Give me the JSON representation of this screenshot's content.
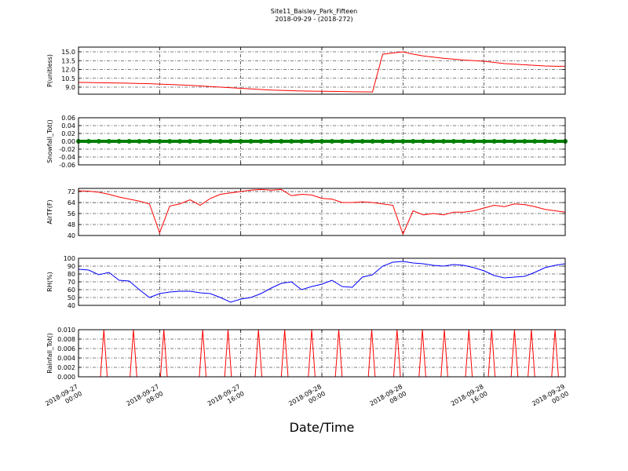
{
  "figure": {
    "title": "Site11_Baisley_Park_Fifteen",
    "subtitle": "2018-09-29 - (2018-272)",
    "x_label": "Date/Time"
  },
  "chart_data": [
    {
      "type": "line",
      "y_label": "P(unitless)",
      "color": "#ff0000",
      "x": [
        "2018-09-27 00:00",
        "2018-09-27 01:00",
        "2018-09-27 02:00",
        "2018-09-27 03:00",
        "2018-09-27 04:00",
        "2018-09-27 05:00",
        "2018-09-27 06:00",
        "2018-09-27 07:00",
        "2018-09-27 08:00",
        "2018-09-27 09:00",
        "2018-09-27 10:00",
        "2018-09-27 11:00",
        "2018-09-27 12:00",
        "2018-09-27 13:00",
        "2018-09-27 14:00",
        "2018-09-27 15:00",
        "2018-09-27 16:00",
        "2018-09-27 17:00",
        "2018-09-27 18:00",
        "2018-09-27 19:00",
        "2018-09-27 20:00",
        "2018-09-27 21:00",
        "2018-09-27 22:00",
        "2018-09-27 23:00",
        "2018-09-28 00:00",
        "2018-09-28 01:00",
        "2018-09-28 02:00",
        "2018-09-28 03:00",
        "2018-09-28 04:00",
        "2018-09-28 05:00",
        "2018-09-28 06:00",
        "2018-09-28 07:00",
        "2018-09-28 08:00",
        "2018-09-28 09:00",
        "2018-09-28 10:00",
        "2018-09-28 11:00",
        "2018-09-28 12:00",
        "2018-09-28 13:00",
        "2018-09-28 14:00",
        "2018-09-28 15:00",
        "2018-09-28 16:00",
        "2018-09-28 17:00",
        "2018-09-28 18:00",
        "2018-09-28 19:00",
        "2018-09-28 20:00",
        "2018-09-28 21:00",
        "2018-09-28 22:00",
        "2018-09-28 23:00",
        "2018-09-29 00:00"
      ],
      "values": [
        9.8,
        9.78,
        9.75,
        9.72,
        9.7,
        9.66,
        9.62,
        9.58,
        9.52,
        9.45,
        9.38,
        9.3,
        9.2,
        9.1,
        9.0,
        8.9,
        8.8,
        8.7,
        8.6,
        8.5,
        8.45,
        8.4,
        8.35,
        8.32,
        8.3,
        8.28,
        8.25,
        8.22,
        8.2,
        8.18,
        14.6,
        14.8,
        15.0,
        14.6,
        14.3,
        14.1,
        13.9,
        13.75,
        13.6,
        13.5,
        13.4,
        13.2,
        13.0,
        12.9,
        12.8,
        12.7,
        12.6,
        12.55,
        12.55
      ],
      "ylim": [
        7.8,
        15.8
      ],
      "yticks": [
        {
          "value": 9,
          "label": "9.0"
        },
        10.5,
        {
          "value": 12,
          "label": "12.0"
        },
        13.5,
        {
          "value": 15,
          "label": "15.0"
        }
      ],
      "xlim": [
        "2018-09-27 00:00",
        "2018-09-29 00:00"
      ],
      "xticks": [
        "2018-09-27 00:00",
        "2018-09-27 08:00",
        "2018-09-27 16:00",
        "2018-09-28 00:00",
        "2018-09-28 08:00",
        "2018-09-28 16:00",
        "2018-09-29 00:00"
      ],
      "grid": true
    },
    {
      "type": "line",
      "y_label": "Snowfall_Tot()",
      "color": "#008000",
      "markers": true,
      "x": [
        "2018-09-27 00:00",
        "2018-09-27 01:00",
        "2018-09-27 02:00",
        "2018-09-27 03:00",
        "2018-09-27 04:00",
        "2018-09-27 05:00",
        "2018-09-27 06:00",
        "2018-09-27 07:00",
        "2018-09-27 08:00",
        "2018-09-27 09:00",
        "2018-09-27 10:00",
        "2018-09-27 11:00",
        "2018-09-27 12:00",
        "2018-09-27 13:00",
        "2018-09-27 14:00",
        "2018-09-27 15:00",
        "2018-09-27 16:00",
        "2018-09-27 17:00",
        "2018-09-27 18:00",
        "2018-09-27 19:00",
        "2018-09-27 20:00",
        "2018-09-27 21:00",
        "2018-09-27 22:00",
        "2018-09-27 23:00",
        "2018-09-28 00:00",
        "2018-09-28 01:00",
        "2018-09-28 02:00",
        "2018-09-28 03:00",
        "2018-09-28 04:00",
        "2018-09-28 05:00",
        "2018-09-28 06:00",
        "2018-09-28 07:00",
        "2018-09-28 08:00",
        "2018-09-28 09:00",
        "2018-09-28 10:00",
        "2018-09-28 11:00",
        "2018-09-28 12:00",
        "2018-09-28 13:00",
        "2018-09-28 14:00",
        "2018-09-28 15:00",
        "2018-09-28 16:00",
        "2018-09-28 17:00",
        "2018-09-28 18:00",
        "2018-09-28 19:00",
        "2018-09-28 20:00",
        "2018-09-28 21:00",
        "2018-09-28 22:00",
        "2018-09-28 23:00",
        "2018-09-29 00:00"
      ],
      "values": [
        0,
        0,
        0,
        0,
        0,
        0,
        0,
        0,
        0,
        0,
        0,
        0,
        0,
        0,
        0,
        0,
        0,
        0,
        0,
        0,
        0,
        0,
        0,
        0,
        0,
        0,
        0,
        0,
        0,
        0,
        0,
        0,
        0,
        0,
        0,
        0,
        0,
        0,
        0,
        0,
        0,
        0,
        0,
        0,
        0,
        0,
        0,
        0,
        0
      ],
      "ylim": [
        -0.06,
        0.06
      ],
      "yticks": [
        -0.06,
        -0.04,
        -0.02,
        {
          "value": 0,
          "label": "0.00"
        },
        0.02,
        0.04,
        0.06
      ],
      "xlim": [
        "2018-09-27 00:00",
        "2018-09-29 00:00"
      ],
      "xticks": [
        "2018-09-27 00:00",
        "2018-09-27 08:00",
        "2018-09-27 16:00",
        "2018-09-28 00:00",
        "2018-09-28 08:00",
        "2018-09-28 16:00",
        "2018-09-29 00:00"
      ],
      "grid": true
    },
    {
      "type": "line",
      "y_label": "AirTF(F)",
      "color": "#ff0000",
      "x": [
        "2018-09-27 00:00",
        "2018-09-27 01:00",
        "2018-09-27 02:00",
        "2018-09-27 03:00",
        "2018-09-27 04:00",
        "2018-09-27 05:00",
        "2018-09-27 06:00",
        "2018-09-27 07:00",
        "2018-09-27 08:00",
        "2018-09-27 09:00",
        "2018-09-27 10:00",
        "2018-09-27 11:00",
        "2018-09-27 12:00",
        "2018-09-27 13:00",
        "2018-09-27 14:00",
        "2018-09-27 15:00",
        "2018-09-27 16:00",
        "2018-09-27 17:00",
        "2018-09-27 18:00",
        "2018-09-27 19:00",
        "2018-09-27 20:00",
        "2018-09-27 21:00",
        "2018-09-27 22:00",
        "2018-09-27 23:00",
        "2018-09-28 00:00",
        "2018-09-28 01:00",
        "2018-09-28 02:00",
        "2018-09-28 03:00",
        "2018-09-28 04:00",
        "2018-09-28 05:00",
        "2018-09-28 06:00",
        "2018-09-28 07:00",
        "2018-09-28 08:00",
        "2018-09-28 09:00",
        "2018-09-28 10:00",
        "2018-09-28 11:00",
        "2018-09-28 12:00",
        "2018-09-28 13:00",
        "2018-09-28 14:00",
        "2018-09-28 15:00",
        "2018-09-28 16:00",
        "2018-09-28 17:00",
        "2018-09-28 18:00",
        "2018-09-28 19:00",
        "2018-09-28 20:00",
        "2018-09-28 21:00",
        "2018-09-28 22:00",
        "2018-09-28 23:00",
        "2018-09-29 00:00"
      ],
      "values": [
        72.5,
        72.3,
        71.5,
        70,
        68,
        66.5,
        65,
        63,
        42,
        61.5,
        63,
        66,
        62,
        67,
        70,
        71,
        72,
        73,
        73.5,
        73,
        73.5,
        69,
        70,
        69.5,
        67,
        66.5,
        64,
        64,
        64.5,
        64,
        63,
        62,
        41,
        58,
        55,
        56,
        55,
        57,
        57,
        58,
        60,
        62,
        61,
        63,
        62.5,
        61,
        59,
        58,
        57
      ],
      "ylim": [
        40,
        74.3
      ],
      "yticks": [
        40,
        48,
        56,
        64,
        72
      ],
      "xlim": [
        "2018-09-27 00:00",
        "2018-09-29 00:00"
      ],
      "xticks": [
        "2018-09-27 00:00",
        "2018-09-27 08:00",
        "2018-09-27 16:00",
        "2018-09-28 00:00",
        "2018-09-28 08:00",
        "2018-09-28 16:00",
        "2018-09-29 00:00"
      ],
      "grid": true
    },
    {
      "type": "line",
      "y_label": "RH(%)",
      "color": "#0000ff",
      "x": [
        "2018-09-27 00:00",
        "2018-09-27 01:00",
        "2018-09-27 02:00",
        "2018-09-27 03:00",
        "2018-09-27 04:00",
        "2018-09-27 05:00",
        "2018-09-27 06:00",
        "2018-09-27 07:00",
        "2018-09-27 08:00",
        "2018-09-27 09:00",
        "2018-09-27 10:00",
        "2018-09-27 11:00",
        "2018-09-27 12:00",
        "2018-09-27 13:00",
        "2018-09-27 14:00",
        "2018-09-27 15:00",
        "2018-09-27 16:00",
        "2018-09-27 17:00",
        "2018-09-27 18:00",
        "2018-09-27 19:00",
        "2018-09-27 20:00",
        "2018-09-27 21:00",
        "2018-09-27 22:00",
        "2018-09-27 23:00",
        "2018-09-28 00:00",
        "2018-09-28 01:00",
        "2018-09-28 02:00",
        "2018-09-28 03:00",
        "2018-09-28 04:00",
        "2018-09-28 05:00",
        "2018-09-28 06:00",
        "2018-09-28 07:00",
        "2018-09-28 08:00",
        "2018-09-28 09:00",
        "2018-09-28 10:00",
        "2018-09-28 11:00",
        "2018-09-28 12:00",
        "2018-09-28 13:00",
        "2018-09-28 14:00",
        "2018-09-28 15:00",
        "2018-09-28 16:00",
        "2018-09-28 17:00",
        "2018-09-28 18:00",
        "2018-09-28 19:00",
        "2018-09-28 20:00",
        "2018-09-28 21:00",
        "2018-09-28 22:00",
        "2018-09-28 23:00",
        "2018-09-29 00:00"
      ],
      "values": [
        86,
        85,
        79,
        82,
        72,
        71,
        60,
        50,
        55,
        57,
        58,
        58,
        56,
        55,
        50,
        44,
        48,
        50,
        55,
        62,
        68,
        70,
        60,
        64,
        67,
        72,
        64,
        63,
        76,
        79,
        90,
        95,
        96,
        94,
        93,
        91,
        90,
        92,
        91,
        88,
        84,
        78,
        75,
        76,
        77,
        82,
        88,
        91,
        93
      ],
      "ylim": [
        40,
        100
      ],
      "yticks": [
        40,
        50,
        60,
        70,
        80,
        90,
        100
      ],
      "xlim": [
        "2018-09-27 00:00",
        "2018-09-29 00:00"
      ],
      "xticks": [
        "2018-09-27 00:00",
        "2018-09-27 08:00",
        "2018-09-27 16:00",
        "2018-09-28 00:00",
        "2018-09-28 08:00",
        "2018-09-28 16:00",
        "2018-09-29 00:00"
      ],
      "grid": true
    },
    {
      "type": "line",
      "y_label": "Rainfall_Tot()",
      "color": "#ff0000",
      "x": [
        "2018-09-27 00:00",
        "2018-09-27 02:10",
        "2018-09-27 02:30",
        "2018-09-27 02:50",
        "2018-09-27 05:05",
        "2018-09-27 05:25",
        "2018-09-27 05:45",
        "2018-09-27 08:05",
        "2018-09-27 08:25",
        "2018-09-27 08:45",
        "2018-09-27 11:55",
        "2018-09-27 12:15",
        "2018-09-27 12:35",
        "2018-09-27 14:25",
        "2018-09-27 14:45",
        "2018-09-27 15:05",
        "2018-09-27 17:25",
        "2018-09-27 17:45",
        "2018-09-27 18:05",
        "2018-09-27 20:00",
        "2018-09-27 20:20",
        "2018-09-27 20:40",
        "2018-09-27 22:40",
        "2018-09-27 23:00",
        "2018-09-27 23:20",
        "2018-09-28 01:20",
        "2018-09-28 01:40",
        "2018-09-28 02:00",
        "2018-09-28 04:35",
        "2018-09-28 04:55",
        "2018-09-28 05:15",
        "2018-09-28 07:05",
        "2018-09-28 07:25",
        "2018-09-28 07:45",
        "2018-09-28 09:35",
        "2018-09-28 09:55",
        "2018-09-28 10:15",
        "2018-09-28 11:45",
        "2018-09-28 12:05",
        "2018-09-28 12:25",
        "2018-09-28 14:10",
        "2018-09-28 14:30",
        "2018-09-28 14:50",
        "2018-09-28 16:25",
        "2018-09-28 16:45",
        "2018-09-28 17:05",
        "2018-09-28 18:40",
        "2018-09-28 19:00",
        "2018-09-28 19:20",
        "2018-09-28 20:20",
        "2018-09-28 20:40",
        "2018-09-28 21:00",
        "2018-09-28 22:40",
        "2018-09-28 23:00",
        "2018-09-28 23:20",
        "2018-09-29 00:00"
      ],
      "values": [
        0,
        0,
        0.01,
        0,
        0,
        0.01,
        0,
        0,
        0.01,
        0,
        0,
        0.01,
        0,
        0,
        0.01,
        0,
        0,
        0.01,
        0,
        0,
        0.01,
        0,
        0,
        0.01,
        0,
        0,
        0.01,
        0,
        0,
        0.01,
        0,
        0,
        0.01,
        0,
        0,
        0.01,
        0,
        0,
        0.01,
        0,
        0,
        0.01,
        0,
        0,
        0.01,
        0,
        0,
        0.01,
        0,
        0,
        0.01,
        0,
        0,
        0.01,
        0,
        0
      ],
      "ylim": [
        0,
        0.01
      ],
      "yticks": [
        {
          "value": 0,
          "label": "0.000"
        },
        0.002,
        0.004,
        0.006,
        0.008,
        {
          "value": 0.01,
          "label": "0.010"
        }
      ],
      "xlim": [
        "2018-09-27 00:00",
        "2018-09-29 00:00"
      ],
      "xticks": [
        "2018-09-27 00:00",
        "2018-09-27 08:00",
        "2018-09-27 16:00",
        "2018-09-28 00:00",
        "2018-09-28 08:00",
        "2018-09-28 16:00",
        "2018-09-29 00:00"
      ],
      "grid": true
    }
  ]
}
